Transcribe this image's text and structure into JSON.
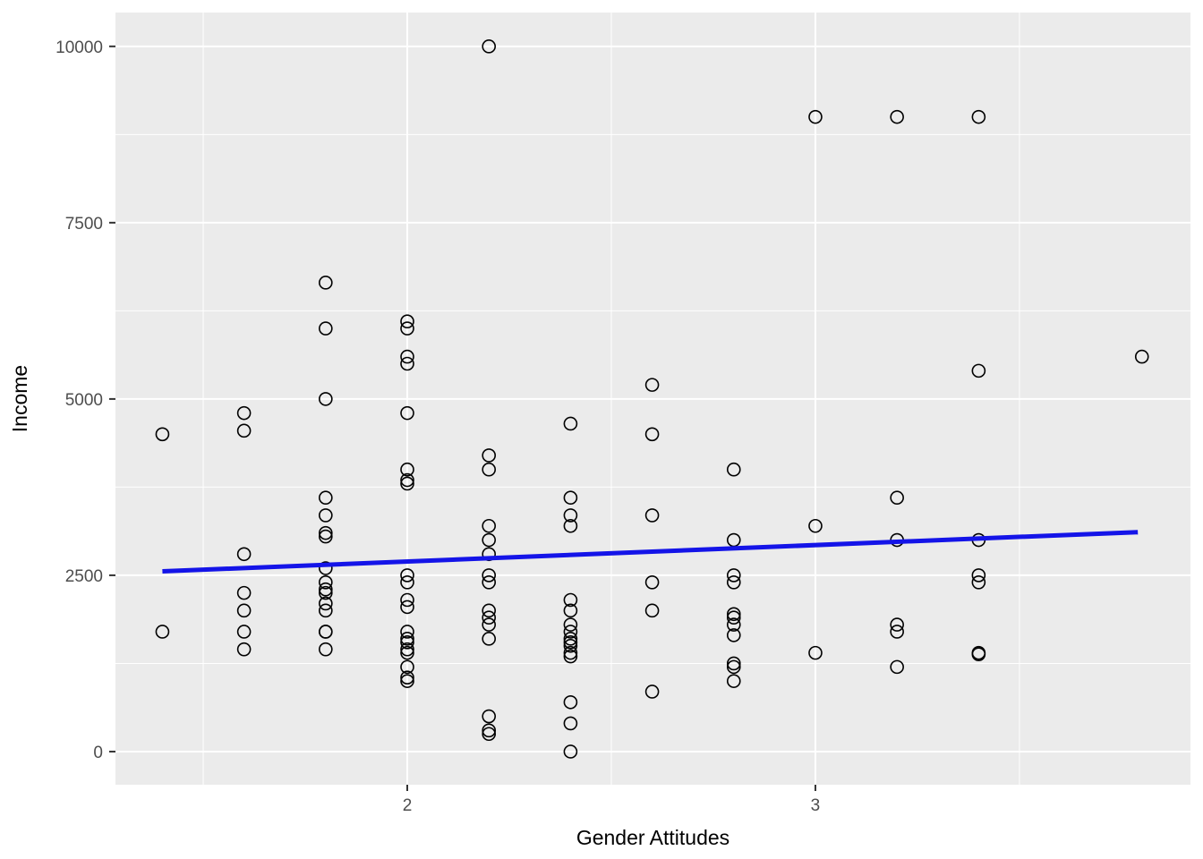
{
  "chart_data": {
    "type": "scatter",
    "title": "",
    "xlabel": "Gender Attitudes",
    "ylabel": "Income",
    "legend": "none",
    "grid": "on",
    "panel_bg": "#EBEBEB",
    "grid_color": "#FFFFFF",
    "point_color": "#000000",
    "tick_mark_color": "#333333",
    "tick_label_color": "#4D4D4D",
    "axis_title_color": "#000000",
    "xlim": [
      1.285,
      3.919
    ],
    "ylim": [
      -470,
      10480
    ],
    "x_ticks": [
      "2",
      "3"
    ],
    "x_tick_values": [
      2,
      3
    ],
    "y_ticks": [
      "0",
      "2500",
      "5000",
      "7500",
      "10000"
    ],
    "y_tick_values": [
      0,
      2500,
      5000,
      7500,
      10000
    ],
    "x_minor": [
      1.5,
      2.5,
      3.5
    ],
    "y_minor": [
      1250,
      3750,
      6250,
      8750
    ],
    "trend_line": {
      "color": "#1414E8",
      "x1": 1.4,
      "y1": 2556,
      "x2": 3.79,
      "y2": 3112
    },
    "points": [
      [
        1.4,
        4500
      ],
      [
        1.4,
        1700
      ],
      [
        1.6,
        4800
      ],
      [
        1.6,
        4550
      ],
      [
        1.6,
        2800
      ],
      [
        1.6,
        2250
      ],
      [
        1.6,
        2000
      ],
      [
        1.6,
        1700
      ],
      [
        1.6,
        1450
      ],
      [
        1.8,
        6650
      ],
      [
        1.8,
        6000
      ],
      [
        1.8,
        5000
      ],
      [
        1.8,
        3600
      ],
      [
        1.8,
        3350
      ],
      [
        1.8,
        3100
      ],
      [
        1.8,
        3050
      ],
      [
        1.8,
        2600
      ],
      [
        1.8,
        2400
      ],
      [
        1.8,
        2300
      ],
      [
        1.8,
        2250
      ],
      [
        1.8,
        2100
      ],
      [
        1.8,
        2000
      ],
      [
        1.8,
        1700
      ],
      [
        1.8,
        1700
      ],
      [
        1.8,
        1450
      ],
      [
        2.0,
        6100
      ],
      [
        2.0,
        6000
      ],
      [
        2.0,
        5600
      ],
      [
        2.0,
        5500
      ],
      [
        2.0,
        4800
      ],
      [
        2.0,
        4000
      ],
      [
        2.0,
        3850
      ],
      [
        2.0,
        3800
      ],
      [
        2.0,
        2500
      ],
      [
        2.0,
        2400
      ],
      [
        2.0,
        2150
      ],
      [
        2.0,
        2050
      ],
      [
        2.0,
        1700
      ],
      [
        2.0,
        1600
      ],
      [
        2.0,
        1550
      ],
      [
        2.0,
        1450
      ],
      [
        2.0,
        1400
      ],
      [
        2.0,
        1200
      ],
      [
        2.0,
        1050
      ],
      [
        2.0,
        1000
      ],
      [
        2.2,
        10000
      ],
      [
        2.2,
        4200
      ],
      [
        2.2,
        4000
      ],
      [
        2.2,
        3200
      ],
      [
        2.2,
        3000
      ],
      [
        2.2,
        2800
      ],
      [
        2.2,
        2500
      ],
      [
        2.2,
        2400
      ],
      [
        2.2,
        2000
      ],
      [
        2.2,
        1900
      ],
      [
        2.2,
        1800
      ],
      [
        2.2,
        1600
      ],
      [
        2.2,
        500
      ],
      [
        2.2,
        300
      ],
      [
        2.2,
        250
      ],
      [
        2.4,
        4650
      ],
      [
        2.4,
        3600
      ],
      [
        2.4,
        3350
      ],
      [
        2.4,
        3200
      ],
      [
        2.4,
        2150
      ],
      [
        2.4,
        2000
      ],
      [
        2.4,
        1800
      ],
      [
        2.4,
        1700
      ],
      [
        2.4,
        1600
      ],
      [
        2.4,
        1550
      ],
      [
        2.4,
        1500
      ],
      [
        2.4,
        1400
      ],
      [
        2.4,
        1350
      ],
      [
        2.4,
        700
      ],
      [
        2.4,
        400
      ],
      [
        2.4,
        0
      ],
      [
        2.6,
        5200
      ],
      [
        2.6,
        4500
      ],
      [
        2.6,
        3350
      ],
      [
        2.6,
        2400
      ],
      [
        2.6,
        2000
      ],
      [
        2.6,
        850
      ],
      [
        2.8,
        4000
      ],
      [
        2.8,
        3000
      ],
      [
        2.8,
        2500
      ],
      [
        2.8,
        2400
      ],
      [
        2.8,
        1950
      ],
      [
        2.8,
        1900
      ],
      [
        2.8,
        1800
      ],
      [
        2.8,
        1650
      ],
      [
        2.8,
        1250
      ],
      [
        2.8,
        1200
      ],
      [
        2.8,
        1000
      ],
      [
        3.0,
        9000
      ],
      [
        3.0,
        3200
      ],
      [
        3.0,
        1400
      ],
      [
        3.2,
        9000
      ],
      [
        3.2,
        3600
      ],
      [
        3.2,
        3000
      ],
      [
        3.2,
        1800
      ],
      [
        3.2,
        1700
      ],
      [
        3.2,
        1200
      ],
      [
        3.4,
        9000
      ],
      [
        3.4,
        5400
      ],
      [
        3.4,
        3000
      ],
      [
        3.4,
        2500
      ],
      [
        3.4,
        2400
      ],
      [
        3.4,
        1400
      ],
      [
        3.4,
        1380
      ],
      [
        3.8,
        5600
      ]
    ]
  }
}
